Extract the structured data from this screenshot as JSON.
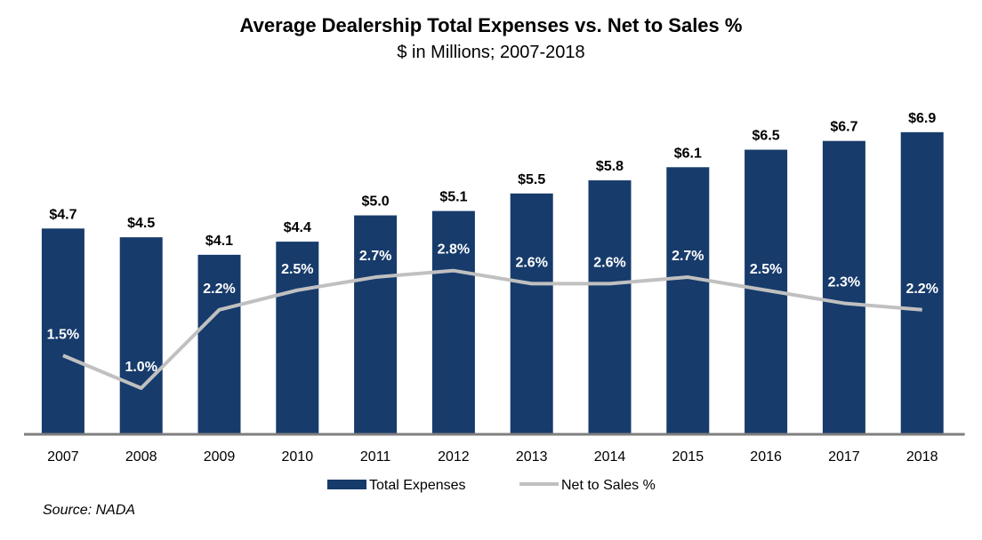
{
  "title": "Average Dealership Total Expenses vs. Net to Sales %",
  "subtitle": "$ in Millions; 2007-2018",
  "source": "Source: NADA",
  "colors": {
    "bar": "#173B6B",
    "line": "#C0C0C0",
    "axis": "#7F7F7F"
  },
  "chart_data": {
    "type": "bar",
    "categories": [
      "2007",
      "2008",
      "2009",
      "2010",
      "2011",
      "2012",
      "2013",
      "2014",
      "2015",
      "2016",
      "2017",
      "2018"
    ],
    "series": [
      {
        "name": "Total Expenses",
        "type": "bar",
        "values": [
          4.7,
          4.5,
          4.1,
          4.4,
          5.0,
          5.1,
          5.5,
          5.8,
          6.1,
          6.5,
          6.7,
          6.9
        ],
        "labels": [
          "$4.7",
          "$4.5",
          "$4.1",
          "$4.4",
          "$5.0",
          "$5.1",
          "$5.5",
          "$5.8",
          "$6.1",
          "$6.5",
          "$6.7",
          "$6.9"
        ]
      },
      {
        "name": "Net to Sales %",
        "type": "line",
        "values": [
          1.5,
          1.0,
          2.2,
          2.5,
          2.7,
          2.8,
          2.6,
          2.6,
          2.7,
          2.5,
          2.3,
          2.2
        ],
        "labels": [
          "1.5%",
          "1.0%",
          "2.2%",
          "2.5%",
          "2.7%",
          "2.8%",
          "2.6%",
          "2.6%",
          "2.7%",
          "2.5%",
          "2.3%",
          "2.2%"
        ]
      }
    ],
    "legend_position": "bottom",
    "grid": false
  }
}
